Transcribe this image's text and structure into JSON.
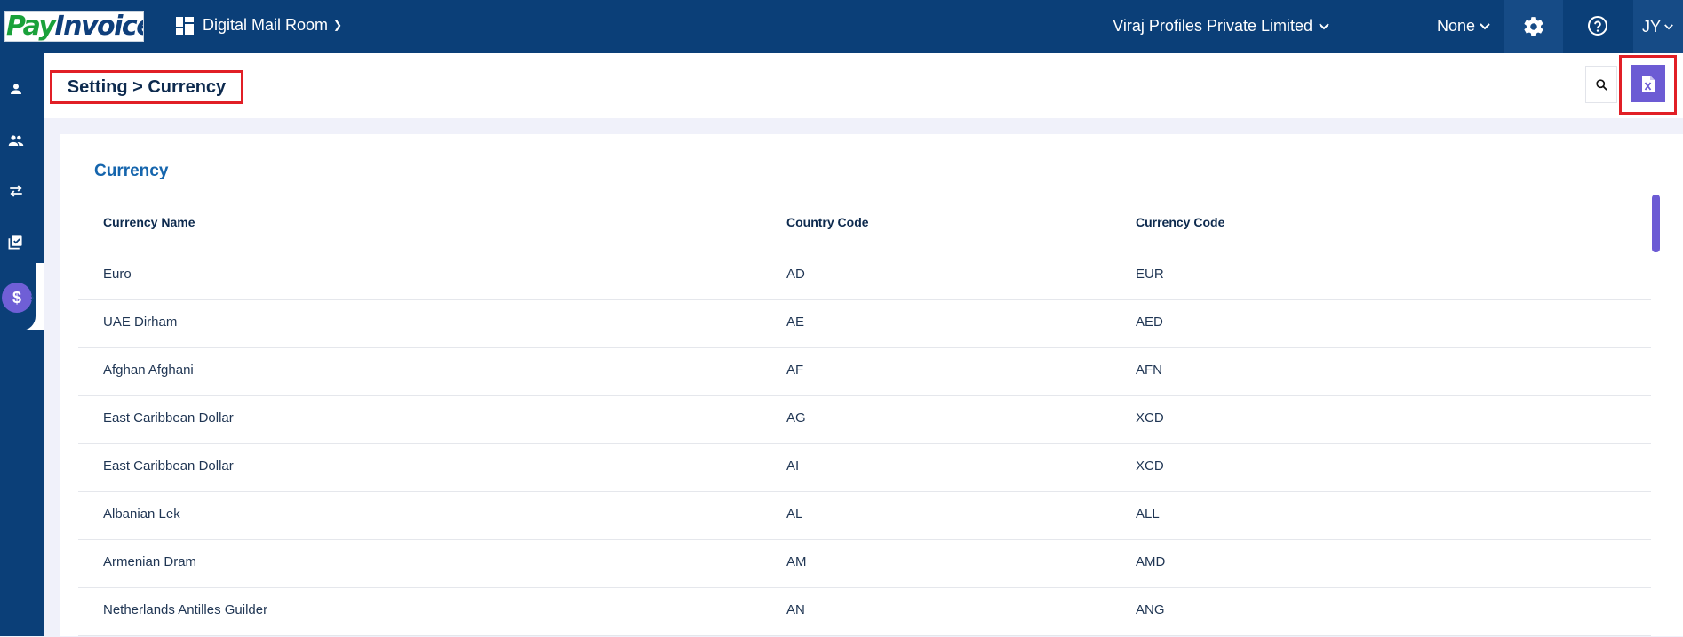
{
  "topbar": {
    "logo_pay": "Pay",
    "logo_invoice": "Invoice",
    "app_name": "Digital Mail Room",
    "company": "Viraj Profiles Private Limited",
    "filter_value": "None",
    "user_initials": "JY"
  },
  "sidebar": {
    "items": [
      "person-icon",
      "group-icon",
      "transfer-icon",
      "checklist-icon",
      "dollar-icon"
    ],
    "active_symbol": "$"
  },
  "header": {
    "breadcrumb": "Setting > Currency"
  },
  "card": {
    "title": "Currency",
    "columns": [
      "Currency Name",
      "Country Code",
      "Currency Code"
    ],
    "rows": [
      [
        "Euro",
        "AD",
        "EUR"
      ],
      [
        "UAE Dirham",
        "AE",
        "AED"
      ],
      [
        "Afghan Afghani",
        "AF",
        "AFN"
      ],
      [
        "East Caribbean Dollar",
        "AG",
        "XCD"
      ],
      [
        "East Caribbean Dollar",
        "AI",
        "XCD"
      ],
      [
        "Albanian Lek",
        "AL",
        "ALL"
      ],
      [
        "Armenian Dram",
        "AM",
        "AMD"
      ],
      [
        "Netherlands Antilles Guilder",
        "AN",
        "ANG"
      ]
    ]
  },
  "colors": {
    "navy": "#0b3f78",
    "accent": "#6c5bd4",
    "highlight": "#e11f26",
    "title_blue": "#1565ad"
  }
}
